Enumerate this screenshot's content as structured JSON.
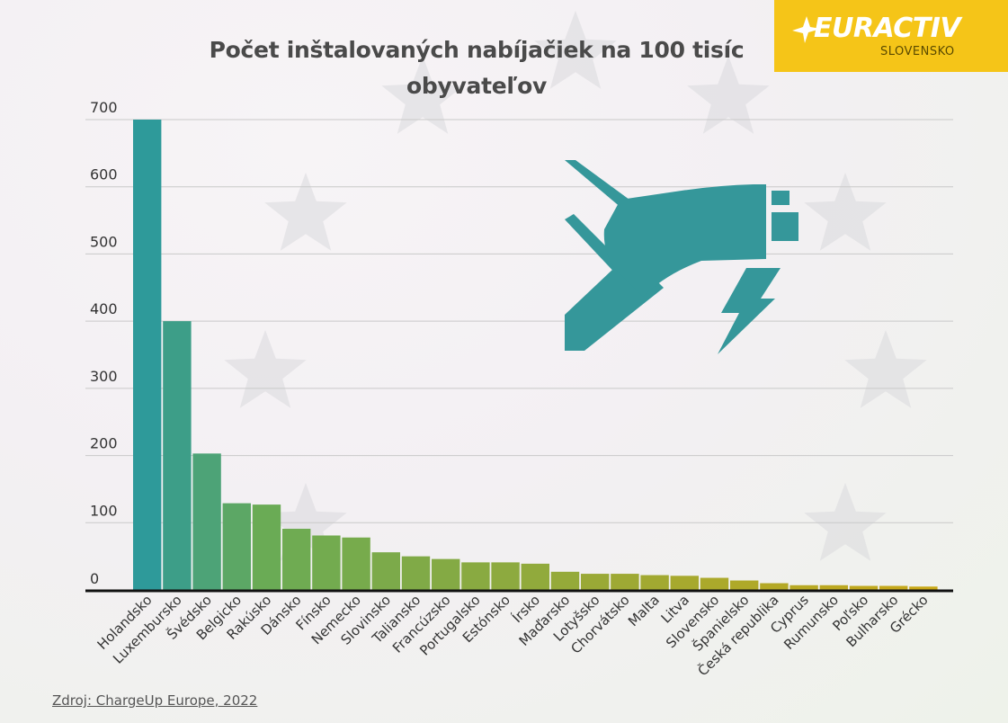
{
  "title_line1": "Počet inštalovaných nabíjačiek na 100 tisíc",
  "title_line2": "obyvateľov",
  "logo": {
    "brand": "EURACTIV",
    "sub": "SLOVENSKO",
    "color": "#f5c518"
  },
  "source": "Zdroj: ChargeUp Europe, 2022",
  "icon": "hand-holding-charging-plug-icon",
  "chart_data": {
    "type": "bar",
    "title": "Počet inštalovaných nabíjačiek na 100 tisíc obyvateľov",
    "xlabel": "",
    "ylabel": "",
    "ylim": [
      0,
      700
    ],
    "yticks": [
      0,
      100,
      200,
      300,
      400,
      500,
      600,
      700
    ],
    "grid": true,
    "categories": [
      "Holandsko",
      "Luxembursko",
      "Švédsko",
      "Belgicko",
      "Rakúsko",
      "Dánsko",
      "Fínsko",
      "Nemecko",
      "Slovinsko",
      "Taliansko",
      "Francúzsko",
      "Portugalsko",
      "Estónsko",
      "Írsko",
      "Maďarsko",
      "Lotyšsko",
      "Chorvátsko",
      "Malta",
      "Litva",
      "Slovensko",
      "Španielsko",
      "Česká republika",
      "Cyprus",
      "Rumunsko",
      "Poľsko",
      "Bulharsko",
      "Grécko"
    ],
    "values": [
      700,
      400,
      203,
      129,
      127,
      91,
      81,
      78,
      56,
      50,
      46,
      41,
      41,
      39,
      27,
      24,
      24,
      22,
      21,
      18,
      14,
      10,
      7,
      7,
      6,
      6,
      5
    ],
    "colors": {
      "gradient_start": "#2e9a9a",
      "gradient_mid": "#6aab55",
      "gradient_end": "#c9a818",
      "icon_color": "#35979a"
    }
  }
}
